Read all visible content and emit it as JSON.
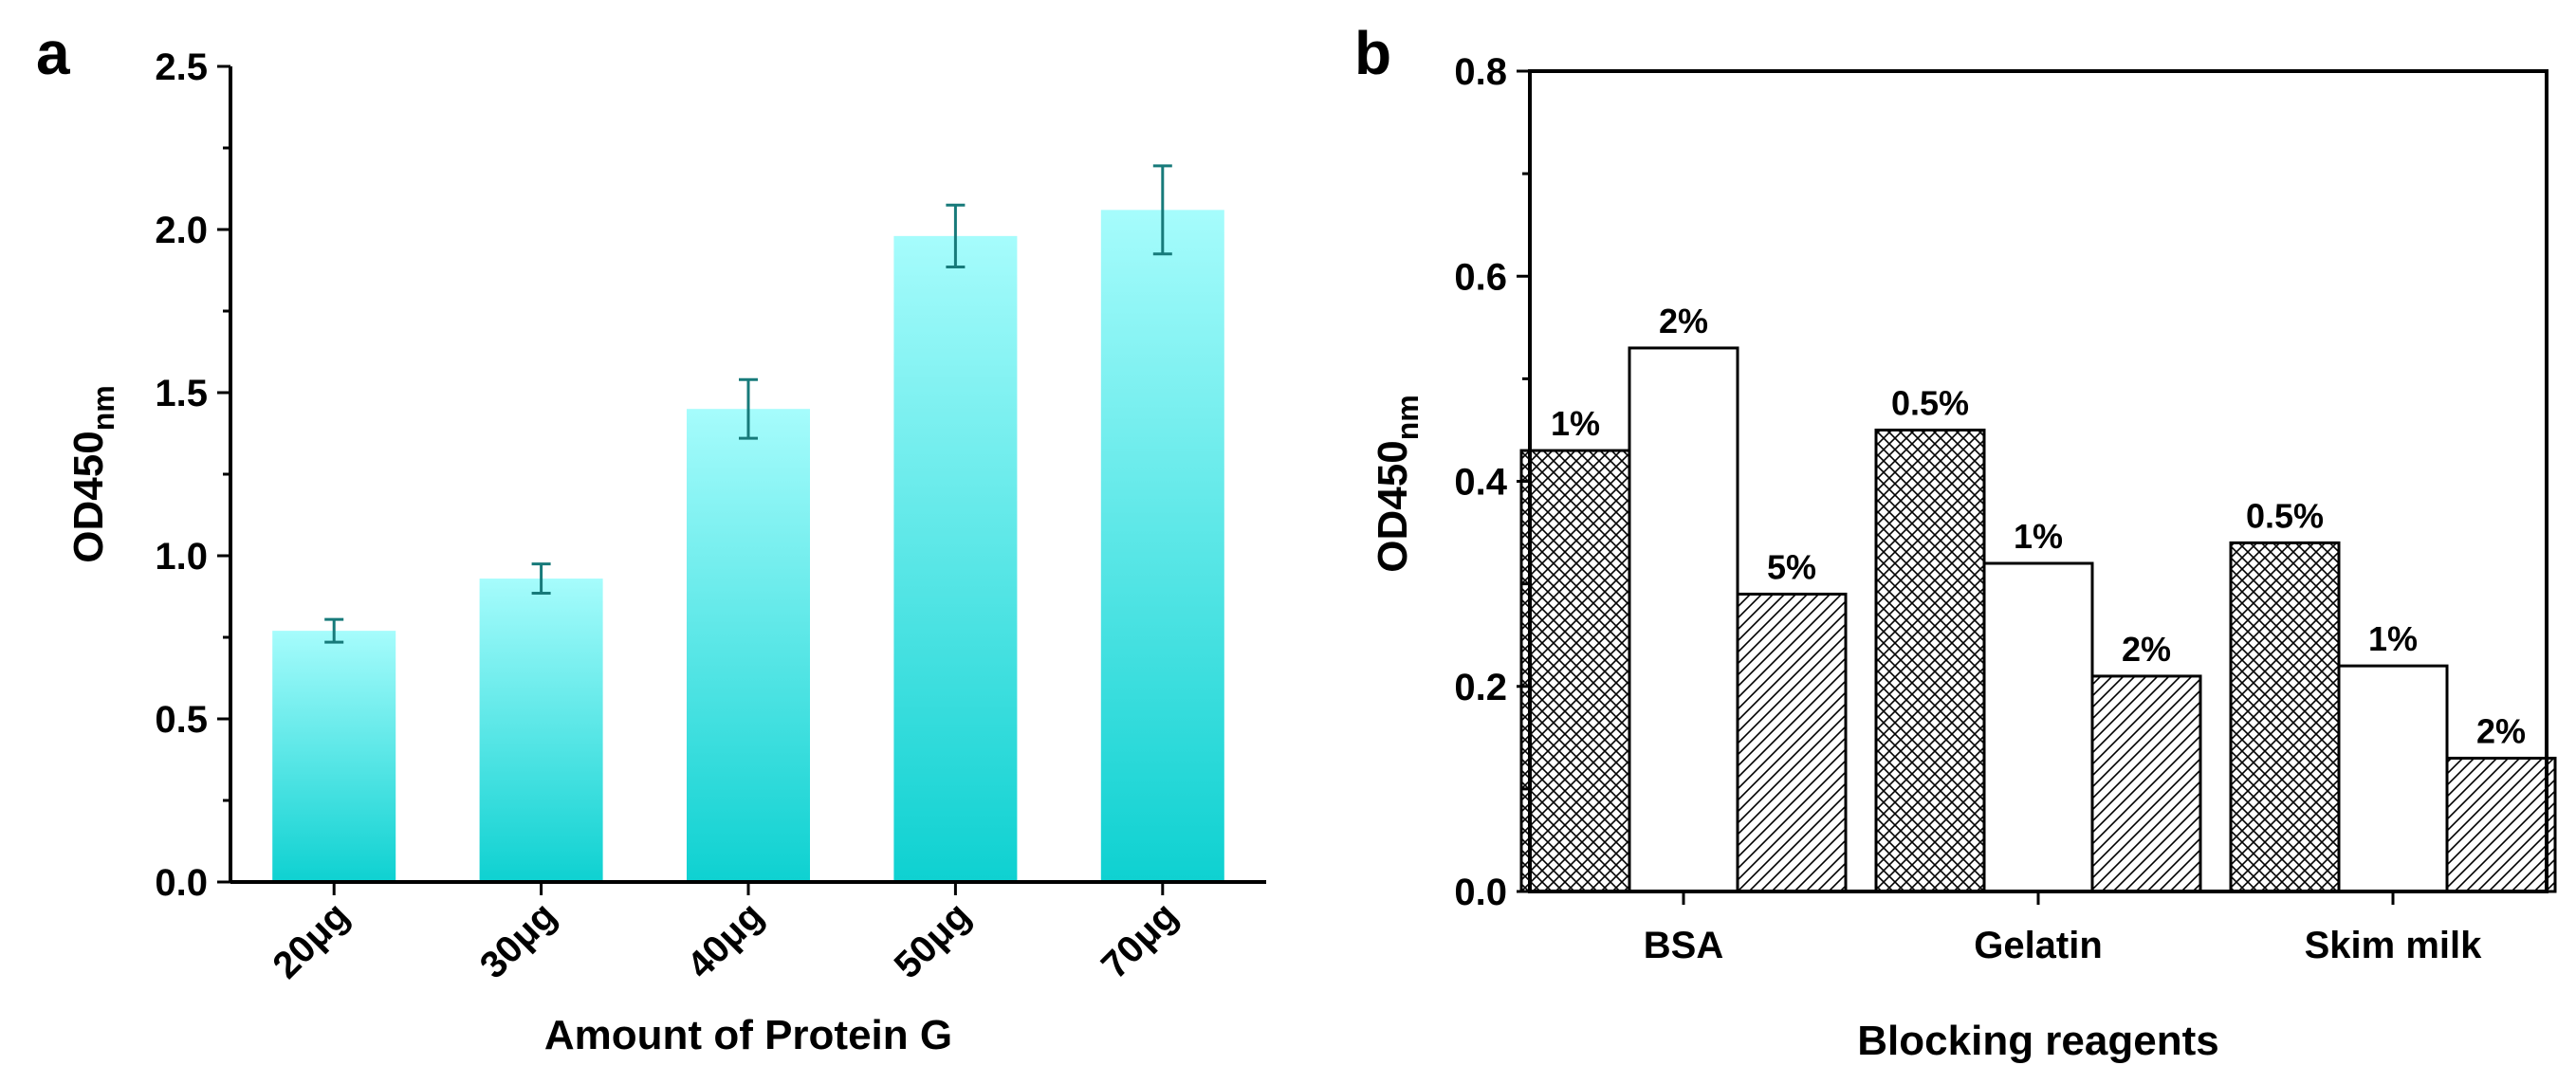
{
  "chart_data": [
    {
      "panel": "a",
      "type": "bar",
      "xlabel": "Amount of Protein G",
      "ylabel": "OD450",
      "ylabel_sub": "nm",
      "ylim": [
        0,
        2.5
      ],
      "yticks": [
        "0.0",
        "0.5",
        "1.0",
        "1.5",
        "2.0",
        "2.5"
      ],
      "categories": [
        "20μg",
        "30μg",
        "40μg",
        "50μg",
        "70μg"
      ],
      "values": [
        0.77,
        0.93,
        1.45,
        1.98,
        2.06
      ],
      "errors": [
        0.035,
        0.045,
        0.09,
        0.095,
        0.135
      ],
      "colors": {
        "bar_top": "#a6fcfc",
        "bar_bottom": "#0ed1d1",
        "error": "#177a7a"
      }
    },
    {
      "panel": "b",
      "type": "bar",
      "xlabel": "Blocking reagents",
      "ylabel": "OD450",
      "ylabel_sub": "nm",
      "ylim": [
        0,
        0.8
      ],
      "yticks": [
        "0.0",
        "0.2",
        "0.4",
        "0.6",
        "0.8"
      ],
      "groups": [
        {
          "name": "BSA",
          "bars": [
            {
              "label": "1%",
              "value": 0.43,
              "pattern": "crosshatch"
            },
            {
              "label": "2%",
              "value": 0.53,
              "pattern": "none"
            },
            {
              "label": "5%",
              "value": 0.29,
              "pattern": "diagonal"
            }
          ]
        },
        {
          "name": "Gelatin",
          "bars": [
            {
              "label": "0.5%",
              "value": 0.45,
              "pattern": "crosshatch"
            },
            {
              "label": "1%",
              "value": 0.32,
              "pattern": "none"
            },
            {
              "label": "2%",
              "value": 0.21,
              "pattern": "diagonal"
            }
          ]
        },
        {
          "name": "Skim milk",
          "bars": [
            {
              "label": "0.5%",
              "value": 0.34,
              "pattern": "crosshatch"
            },
            {
              "label": "1%",
              "value": 0.22,
              "pattern": "none"
            },
            {
              "label": "2%",
              "value": 0.13,
              "pattern": "diagonal"
            }
          ]
        }
      ]
    }
  ]
}
